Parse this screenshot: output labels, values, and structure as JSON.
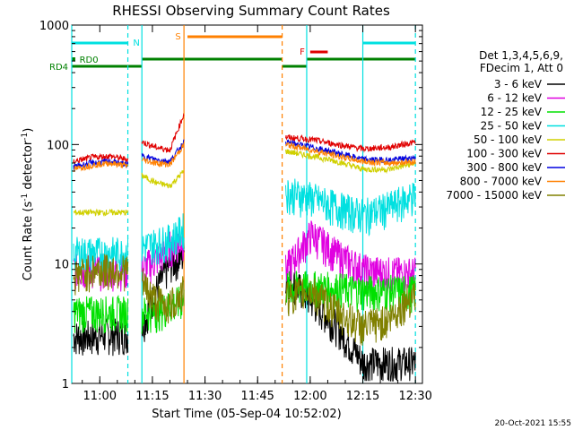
{
  "chart_data": {
    "type": "line",
    "title": "RHESSI Observing Summary Count Rates",
    "xlabel": "Start Time (05-Sep-04 10:52:02)",
    "ylabel": "Count Rate (s⁻¹ detector⁻¹)",
    "ylabel_base": "Count Rate (s",
    "ylabel_sup": "-1",
    "ylabel_mid": " detector",
    "ylabel_sup2": "-1",
    "ylabel_end": ")",
    "yscale": "log",
    "ylim": [
      1,
      1000
    ],
    "xlim_min": [
      0,
      100
    ],
    "x_ticks": [
      {
        "t": 8,
        "label": "11:00"
      },
      {
        "t": 23,
        "label": "11:15"
      },
      {
        "t": 38,
        "label": "11:30"
      },
      {
        "t": 53,
        "label": "11:45"
      },
      {
        "t": 68,
        "label": "12:00"
      },
      {
        "t": 83,
        "label": "12:15"
      },
      {
        "t": 98,
        "label": "12:30"
      }
    ],
    "y_ticks": [
      {
        "v": 1,
        "label": "1"
      },
      {
        "v": 10,
        "label": "10"
      },
      {
        "v": 100,
        "label": "100"
      },
      {
        "v": 1000,
        "label": "1000"
      }
    ],
    "legend_header": [
      "Det 1,3,4,5,6,9,",
      "FDecim 1, Att 0"
    ],
    "series": [
      {
        "name": "3 - 6 keV",
        "color": "#000000",
        "pre": [
          2.5,
          2.5,
          2.6,
          2.6
        ],
        "rise": [
          3,
          6,
          10,
          12
        ],
        "post": [
          8,
          5,
          3,
          1.5,
          1.5,
          1.5
        ]
      },
      {
        "name": "6 - 12 keV",
        "color": "#e000e0",
        "pre": [
          9,
          9,
          9,
          9
        ],
        "rise": [
          9,
          11,
          14,
          16
        ],
        "post": [
          9,
          18,
          12,
          9,
          8.5,
          8.5
        ]
      },
      {
        "name": "12 - 25 keV",
        "color": "#00e000",
        "pre": [
          4,
          4,
          4,
          4
        ],
        "rise": [
          4,
          4,
          4.5,
          5
        ],
        "post": [
          6.5,
          6.5,
          6.3,
          6,
          6,
          6
        ]
      },
      {
        "name": "25 - 50 keV",
        "color": "#00e0e0",
        "pre": [
          12.5,
          12.5,
          12.5,
          12.5
        ],
        "rise": [
          14,
          15,
          16,
          20
        ],
        "post": [
          40,
          36,
          30,
          26,
          30,
          38
        ]
      },
      {
        "name": "50 - 100 keV",
        "color": "#d0d000",
        "pre": [
          27,
          27,
          27,
          27
        ],
        "rise": [
          55,
          48,
          45,
          60
        ],
        "post": [
          88,
          80,
          72,
          62,
          62,
          70
        ]
      },
      {
        "name": "100 - 300 keV",
        "color": "#e00000",
        "pre": [
          72,
          78,
          80,
          75
        ],
        "rise": [
          105,
          95,
          90,
          180
        ],
        "post": [
          115,
          110,
          100,
          92,
          95,
          105
        ]
      },
      {
        "name": "300 - 800 keV",
        "color": "#0000e0",
        "pre": [
          65,
          70,
          72,
          68
        ],
        "rise": [
          80,
          75,
          72,
          105
        ],
        "post": [
          105,
          95,
          85,
          75,
          74,
          78
        ]
      },
      {
        "name": "800 - 7000 keV",
        "color": "#ff8000",
        "pre": [
          62,
          67,
          70,
          66
        ],
        "rise": [
          75,
          70,
          68,
          100
        ],
        "post": [
          100,
          90,
          80,
          72,
          70,
          72
        ]
      },
      {
        "name": "7000 - 15000 keV",
        "color": "#808000",
        "pre": [
          8,
          9,
          9,
          9
        ],
        "rise": [
          7,
          5,
          4.5,
          6
        ],
        "post": [
          5.5,
          6,
          4,
          3,
          3.5,
          6
        ]
      }
    ],
    "flag_labels": {
      "n": "N",
      "s": "S",
      "f": "F",
      "rd0": "RD0",
      "rd4": "RD4"
    },
    "timestamp": "20-Oct-2021 15:55"
  }
}
